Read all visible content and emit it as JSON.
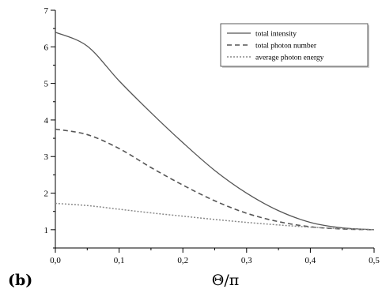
{
  "chart_data": {
    "type": "line",
    "panel_label": "(b)",
    "title": "",
    "xlabel": "Θ/π",
    "ylabel": "",
    "xlim": [
      0,
      0.5
    ],
    "ylim": [
      0.5,
      7
    ],
    "x_ticks": [
      0.0,
      0.1,
      0.2,
      0.3,
      0.4,
      0.5
    ],
    "x_tick_labels": [
      "0,0",
      "0,1",
      "0,2",
      "0,3",
      "0,4",
      "0,5"
    ],
    "y_ticks": [
      1,
      2,
      3,
      4,
      5,
      6,
      7
    ],
    "y_tick_labels": [
      "1",
      "2",
      "3",
      "4",
      "5",
      "6",
      "7"
    ],
    "grid": false,
    "legend_position": "top-right",
    "x": [
      0.0,
      0.05,
      0.1,
      0.15,
      0.2,
      0.25,
      0.3,
      0.35,
      0.4,
      0.45,
      0.5
    ],
    "series": [
      {
        "name": "total intensity",
        "style": "solid",
        "values": [
          6.4,
          6.02,
          5.07,
          4.2,
          3.38,
          2.62,
          2.0,
          1.52,
          1.2,
          1.05,
          1.0
        ]
      },
      {
        "name": "total photon number",
        "style": "dashed",
        "values": [
          3.75,
          3.6,
          3.22,
          2.7,
          2.22,
          1.79,
          1.45,
          1.22,
          1.08,
          1.02,
          1.0
        ]
      },
      {
        "name": "average photon energy",
        "style": "dotted",
        "values": [
          1.72,
          1.66,
          1.56,
          1.46,
          1.37,
          1.28,
          1.2,
          1.13,
          1.07,
          1.03,
          1.0
        ]
      }
    ]
  }
}
